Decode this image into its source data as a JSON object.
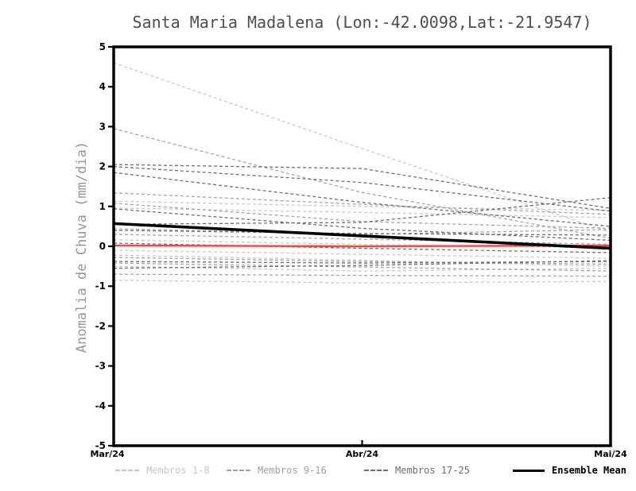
{
  "chart_data": {
    "type": "line",
    "title": "Santa Maria Madalena (Lon:-42.0098,Lat:-21.9547)",
    "ylabel": "Anomalia de Chuva (mm/dia)",
    "x_categories": [
      "Mar/24",
      "Abr/24",
      "Mai/24"
    ],
    "ylim": [
      -5,
      5
    ],
    "yticks": [
      5,
      4,
      3,
      2,
      1,
      0,
      -1,
      -2,
      -3,
      -4,
      -5
    ],
    "grid": false,
    "legend_position": "bottom",
    "series": [
      {
        "name": "Membros 1-8",
        "color": "#c9c9c9",
        "style": "dashed",
        "members": [
          [
            4.6,
            2.45,
            0.35
          ],
          [
            1.13,
            1.0,
            0.9
          ],
          [
            0.96,
            0.85,
            0.72
          ],
          [
            0.16,
            0.05,
            -0.04
          ],
          [
            -0.1,
            -0.2,
            -0.3
          ],
          [
            -0.22,
            -0.35,
            -0.5
          ],
          [
            -0.5,
            -0.62,
            -0.55
          ],
          [
            -0.85,
            -0.92,
            -0.88
          ]
        ]
      },
      {
        "name": "Membros 9-16",
        "color": "#a5a5a5",
        "style": "dashed",
        "members": [
          [
            2.95,
            1.35,
            0.2
          ],
          [
            1.34,
            1.05,
            0.8
          ],
          [
            1.08,
            0.62,
            0.45
          ],
          [
            0.44,
            0.3,
            0.42
          ],
          [
            0.3,
            0.18,
            0.05
          ],
          [
            -0.28,
            -0.38,
            -0.45
          ],
          [
            -0.42,
            -0.52,
            -0.62
          ],
          [
            -0.7,
            -0.73,
            -0.75
          ]
        ]
      },
      {
        "name": "Membros 17-25",
        "color": "#6f6f6f",
        "style": "dashed",
        "members": [
          [
            2.05,
            1.95,
            0.95
          ],
          [
            2.0,
            1.6,
            0.88
          ],
          [
            1.85,
            1.1,
            0.5
          ],
          [
            0.55,
            0.6,
            1.22
          ],
          [
            0.94,
            0.45,
            0.15
          ],
          [
            0.4,
            0.32,
            0.28
          ],
          [
            0.08,
            -0.05,
            -0.16
          ],
          [
            -0.38,
            -0.42,
            -0.38
          ],
          [
            -0.55,
            -0.48,
            -0.36
          ]
        ]
      },
      {
        "name": "Ensemble Mean",
        "color": "#000000",
        "style": "solid",
        "members": [
          [
            0.57,
            0.26,
            -0.05
          ]
        ]
      }
    ],
    "reference_line": {
      "name": "zero-anomaly-reference",
      "color": "#f04843",
      "values": [
        0.02,
        0.0,
        0.02
      ]
    },
    "legend": [
      {
        "label": "Membros 1-8",
        "color": "#c6c6c6",
        "style": "dashed"
      },
      {
        "label": "Membros 9-16",
        "color": "#a0a0a0",
        "style": "dashed"
      },
      {
        "label": "Membros 17-25",
        "color": "#6e6e6e",
        "style": "dashed"
      },
      {
        "label": "Ensemble Mean",
        "color": "#000000",
        "style": "solid"
      }
    ]
  }
}
